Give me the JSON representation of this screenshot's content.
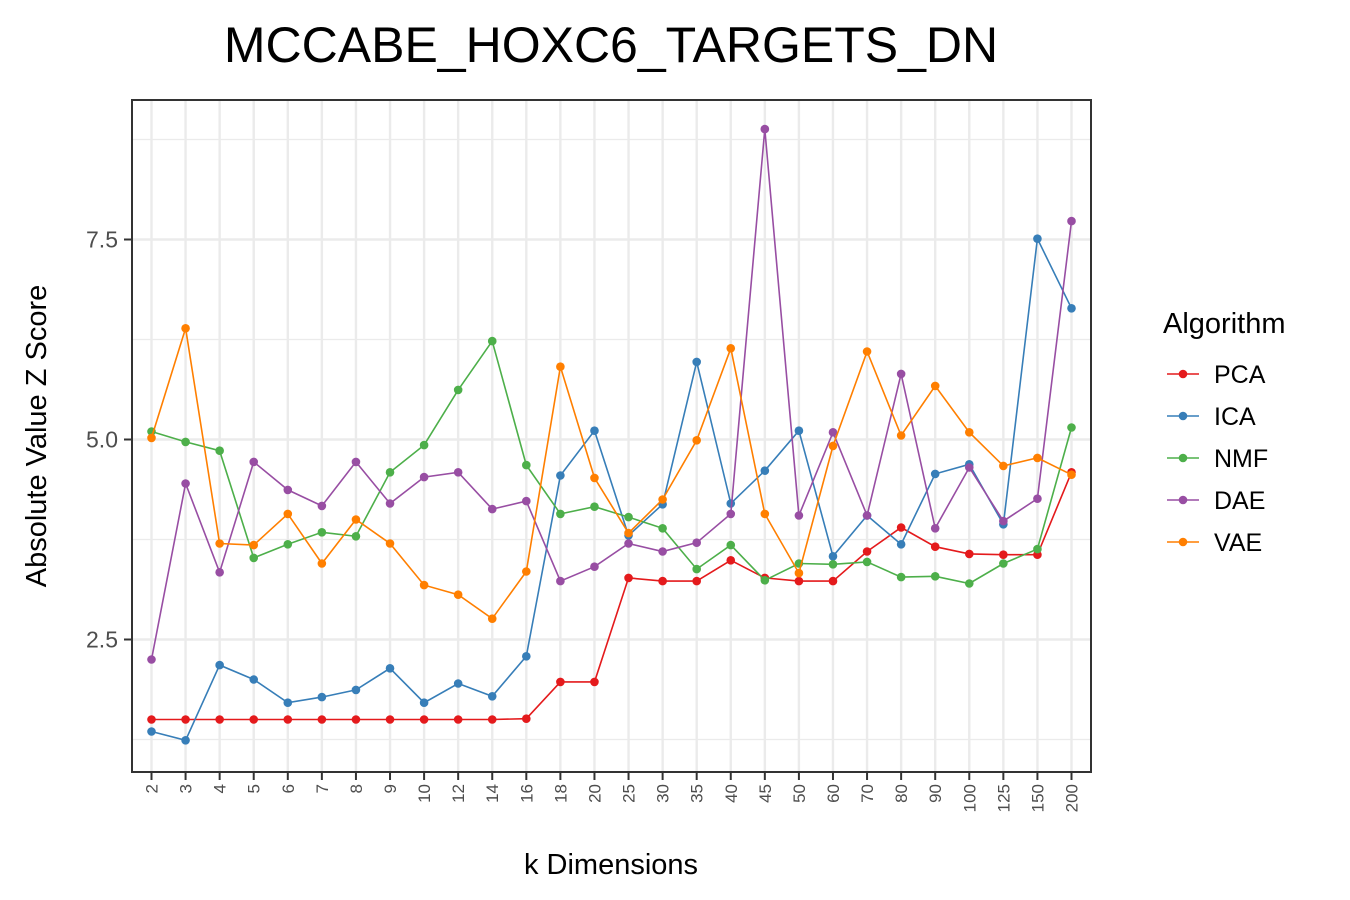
{
  "chart_data": {
    "type": "line",
    "title": "MCCABE_HOXC6_TARGETS_DN",
    "xlabel": "k Dimensions",
    "ylabel": "Absolute Value Z Score",
    "categories": [
      "2",
      "3",
      "4",
      "5",
      "6",
      "7",
      "8",
      "9",
      "10",
      "12",
      "14",
      "16",
      "18",
      "20",
      "25",
      "30",
      "35",
      "40",
      "45",
      "50",
      "60",
      "70",
      "80",
      "90",
      "100",
      "125",
      "150",
      "200"
    ],
    "yticks": [
      "2.5",
      "5.0",
      "7.5"
    ],
    "ylim": [
      0.9,
      9.2
    ],
    "grid": true,
    "legend": {
      "title": "Algorithm",
      "position": "right"
    },
    "series": [
      {
        "name": "PCA",
        "color": "#e41a1c",
        "values": [
          1.5,
          1.5,
          1.5,
          1.5,
          1.5,
          1.5,
          1.5,
          1.5,
          1.5,
          1.5,
          1.5,
          1.51,
          1.97,
          1.97,
          3.27,
          3.23,
          3.23,
          3.49,
          3.27,
          3.23,
          3.23,
          3.6,
          3.9,
          3.66,
          3.57,
          3.56,
          3.56,
          4.59
        ]
      },
      {
        "name": "ICA",
        "color": "#377eb8",
        "values": [
          1.35,
          1.24,
          2.18,
          2.0,
          1.71,
          1.78,
          1.87,
          2.14,
          1.71,
          1.95,
          1.79,
          2.29,
          4.55,
          5.11,
          3.8,
          4.19,
          5.97,
          4.2,
          4.61,
          5.11,
          3.54,
          4.05,
          3.69,
          4.57,
          4.69,
          3.94,
          7.51,
          6.64
        ]
      },
      {
        "name": "NMF",
        "color": "#4daf4a",
        "values": [
          5.1,
          4.97,
          4.86,
          3.52,
          3.69,
          3.84,
          3.79,
          4.59,
          4.93,
          5.62,
          6.23,
          4.68,
          4.07,
          4.16,
          4.03,
          3.89,
          3.38,
          3.68,
          3.24,
          3.45,
          3.44,
          3.47,
          3.28,
          3.29,
          3.2,
          3.45,
          3.63,
          5.15
        ]
      },
      {
        "name": "DAE",
        "color": "#984ea3",
        "values": [
          2.25,
          4.45,
          3.34,
          4.72,
          4.37,
          4.17,
          4.72,
          4.2,
          4.53,
          4.59,
          4.13,
          4.23,
          3.23,
          3.41,
          3.7,
          3.6,
          3.71,
          4.07,
          8.88,
          4.05,
          5.09,
          4.05,
          5.82,
          3.89,
          4.65,
          3.98,
          4.26,
          7.73
        ]
      },
      {
        "name": "VAE",
        "color": "#ff7f00",
        "values": [
          5.02,
          6.39,
          3.7,
          3.68,
          4.07,
          3.45,
          4.0,
          3.7,
          3.18,
          3.06,
          2.76,
          3.35,
          5.91,
          4.52,
          3.83,
          4.25,
          4.99,
          6.14,
          4.07,
          3.33,
          4.92,
          6.1,
          5.05,
          5.67,
          5.09,
          4.67,
          4.77,
          4.56
        ]
      }
    ]
  }
}
